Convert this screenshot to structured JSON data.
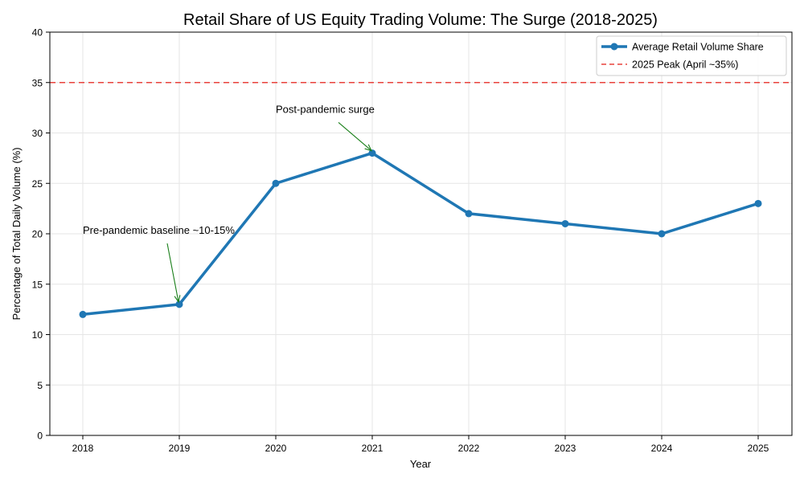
{
  "chart_data": {
    "type": "line",
    "title": "Retail Share of US Equity Trading Volume: The Surge (2018-2025)",
    "xlabel": "Year",
    "ylabel": "Percentage of Total Daily Volume (%)",
    "x": [
      "2018",
      "2019",
      "2020",
      "2021",
      "2022",
      "2023",
      "2024",
      "2025"
    ],
    "series": [
      {
        "name": "Average Retail Volume Share",
        "values": [
          12,
          13,
          25,
          28,
          22,
          21,
          20,
          23
        ],
        "color": "#1f77b4"
      }
    ],
    "reference_lines": [
      {
        "name": "2025 Peak (April ~35%)",
        "y": 35,
        "color": "#e8413b",
        "style": "dashed"
      }
    ],
    "ylim": [
      0,
      40
    ],
    "yticks": [
      0,
      5,
      10,
      15,
      20,
      25,
      30,
      35,
      40
    ],
    "grid": true,
    "legend_position": "top-right",
    "annotations": [
      {
        "text": "Pre-pandemic baseline ~10-15%",
        "target_x": "2019",
        "target_y": 13,
        "text_x": "2018",
        "text_y": 20,
        "arrow_color": "#1a7f1a"
      },
      {
        "text": "Post-pandemic surge",
        "target_x": "2021",
        "target_y": 28,
        "text_x": "2020",
        "text_y": 32,
        "arrow_color": "#1a7f1a"
      }
    ]
  }
}
